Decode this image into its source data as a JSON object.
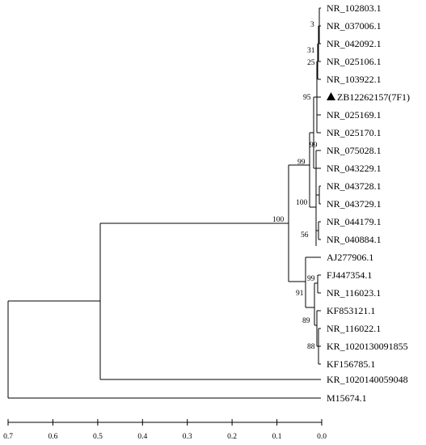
{
  "tree": {
    "leaves": [
      "NR_102803.1",
      "NR_037006.1",
      "NR_042092.1",
      "NR_025106.1",
      "NR_103922.1",
      "ZB12262157(7F1)",
      "NR_025169.1",
      "NR_025170.1",
      "NR_075028.1",
      "NR_043229.1",
      "NR_043728.1",
      "NR_043729.1",
      "NR_044179.1",
      "NR_040884.1",
      "AJ277906.1",
      "FJ447354.1",
      "NR_116023.1",
      "KF853121.1",
      "NR_116022.1",
      "KR_1020130091855",
      "KF156785.1",
      "KR_1020140059048",
      "M15674.1"
    ],
    "highlighted_leaf": "ZB12262157(7F1)",
    "highlight_marker": "filled-triangle",
    "bootstrap_values": [
      "3",
      "31",
      "25",
      "95",
      "99",
      "99",
      "100",
      "100",
      "56",
      "99",
      "91",
      "89",
      "88"
    ]
  },
  "axis": {
    "ticks": [
      "0.7",
      "0.6",
      "0.5",
      "0.4",
      "0.3",
      "0.2",
      "0.1",
      "0.0"
    ]
  }
}
